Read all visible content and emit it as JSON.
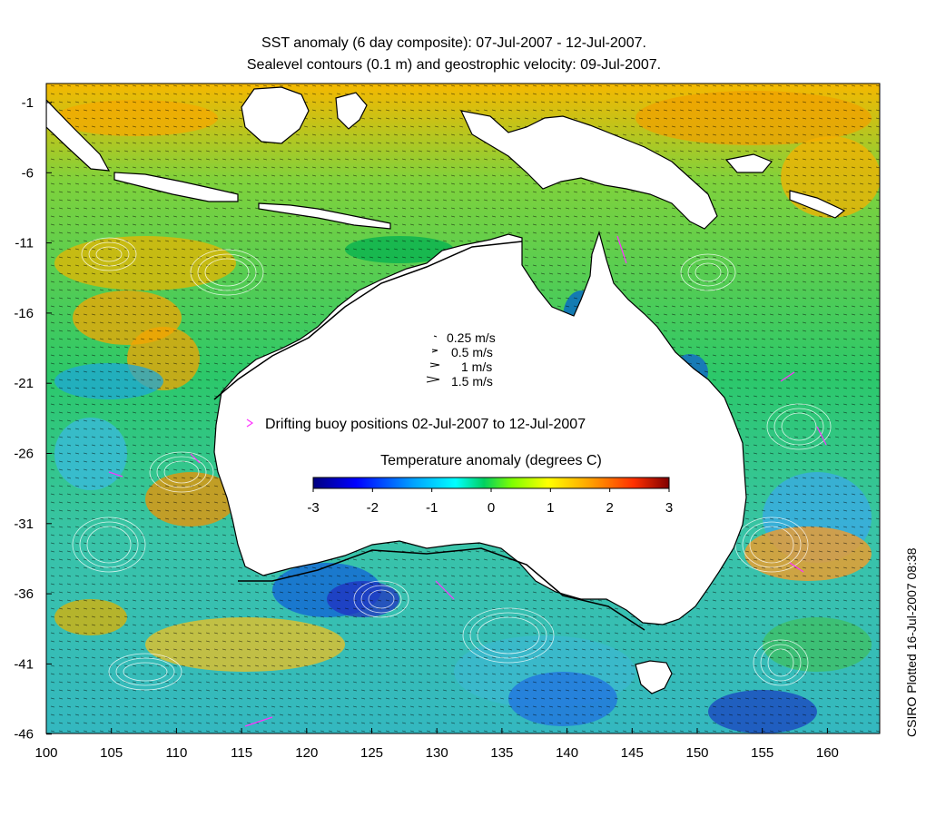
{
  "title": {
    "line1": "SST anomaly (6 day composite): 07-Jul-2007 - 12-Jul-2007.",
    "line2": "Sealevel contours (0.1 m) and geostrophic velocity: 09-Jul-2007."
  },
  "axes": {
    "x_ticks": [
      "100",
      "105",
      "110",
      "115",
      "120",
      "125",
      "130",
      "135",
      "140",
      "145",
      "150",
      "155",
      "160"
    ],
    "y_ticks": [
      "-1",
      "-6",
      "-11",
      "-16",
      "-21",
      "-26",
      "-31",
      "-36",
      "-41",
      "-46"
    ]
  },
  "velocity_legend": [
    "0.25 m/s",
    "0.5 m/s",
    "1 m/s",
    "1.5 m/s"
  ],
  "buoy_legend": "Drifting buoy positions 02-Jul-2007 to 12-Jul-2007",
  "colorbar": {
    "title": "Temperature anomaly (degrees C)",
    "ticks": [
      "-3",
      "-2",
      "-1",
      "0",
      "1",
      "2",
      "3"
    ],
    "colors": [
      "#00007f",
      "#0000ff",
      "#00a0ff",
      "#00ffff",
      "#40ff80",
      "#00c000",
      "#c8ff00",
      "#ffff00",
      "#ffa000",
      "#ff4000",
      "#800000"
    ]
  },
  "credit": "CSIRO Plotted 16-Jul-2007 08:38",
  "colors": {
    "buoy": "#ff33ff",
    "contour": "#ffffff",
    "land": "#ffffff",
    "coast": "#000000"
  }
}
